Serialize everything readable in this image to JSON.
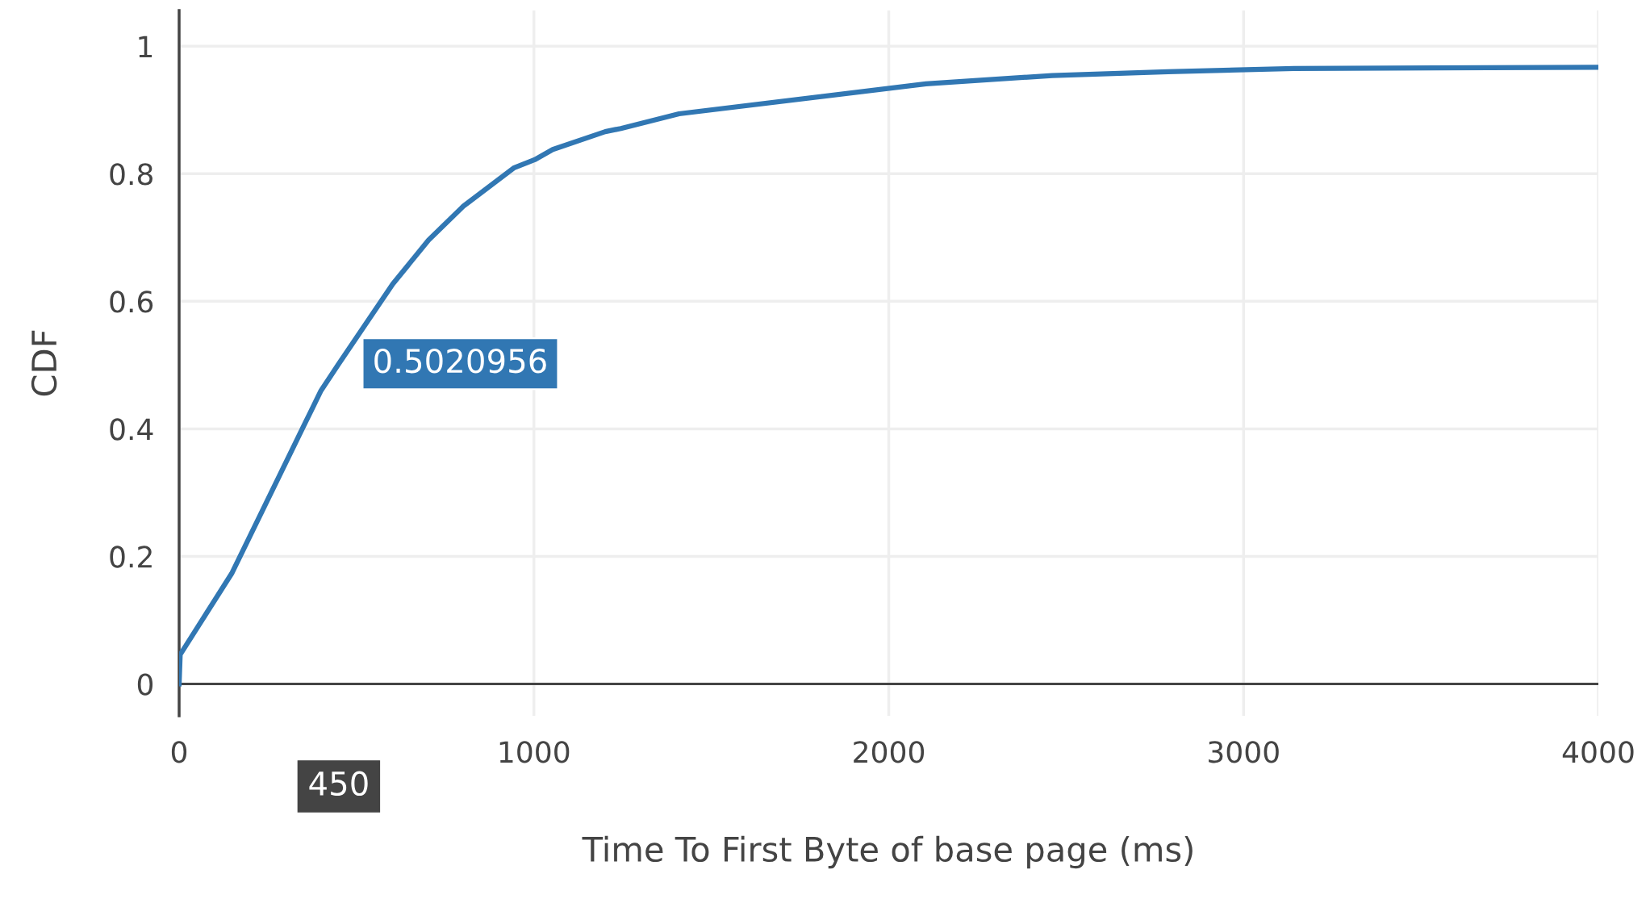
{
  "chart_data": {
    "type": "line",
    "xlabel": "Time To First Byte of base page (ms)",
    "ylabel": "CDF",
    "x": [
      0,
      3,
      148,
      356,
      400,
      450,
      602,
      703,
      801,
      943,
      1002,
      1053,
      1201,
      1245,
      1409,
      2105,
      2461,
      2787,
      3143,
      4000
    ],
    "series": [
      {
        "color": "#3177b3",
        "values": [
          0.0,
          0.046,
          0.173,
          0.41,
          0.46,
          0.502,
          0.627,
          0.696,
          0.749,
          0.809,
          0.822,
          0.838,
          0.866,
          0.871,
          0.894,
          0.941,
          0.954,
          0.96,
          0.965,
          0.967
        ]
      }
    ],
    "xlim": [
      0,
      4000
    ],
    "ylim": [
      -0.05,
      1.056
    ],
    "xticks": [
      0,
      1000,
      2000,
      3000,
      4000
    ],
    "yticks": [
      0,
      0.2,
      0.4,
      0.6,
      0.8,
      1
    ],
    "grid": true,
    "marker": "none",
    "line_style": "solid",
    "annotations": [
      {
        "text": "0.5020956",
        "x": 450,
        "y": 0.5020956
      },
      "450"
    ]
  }
}
